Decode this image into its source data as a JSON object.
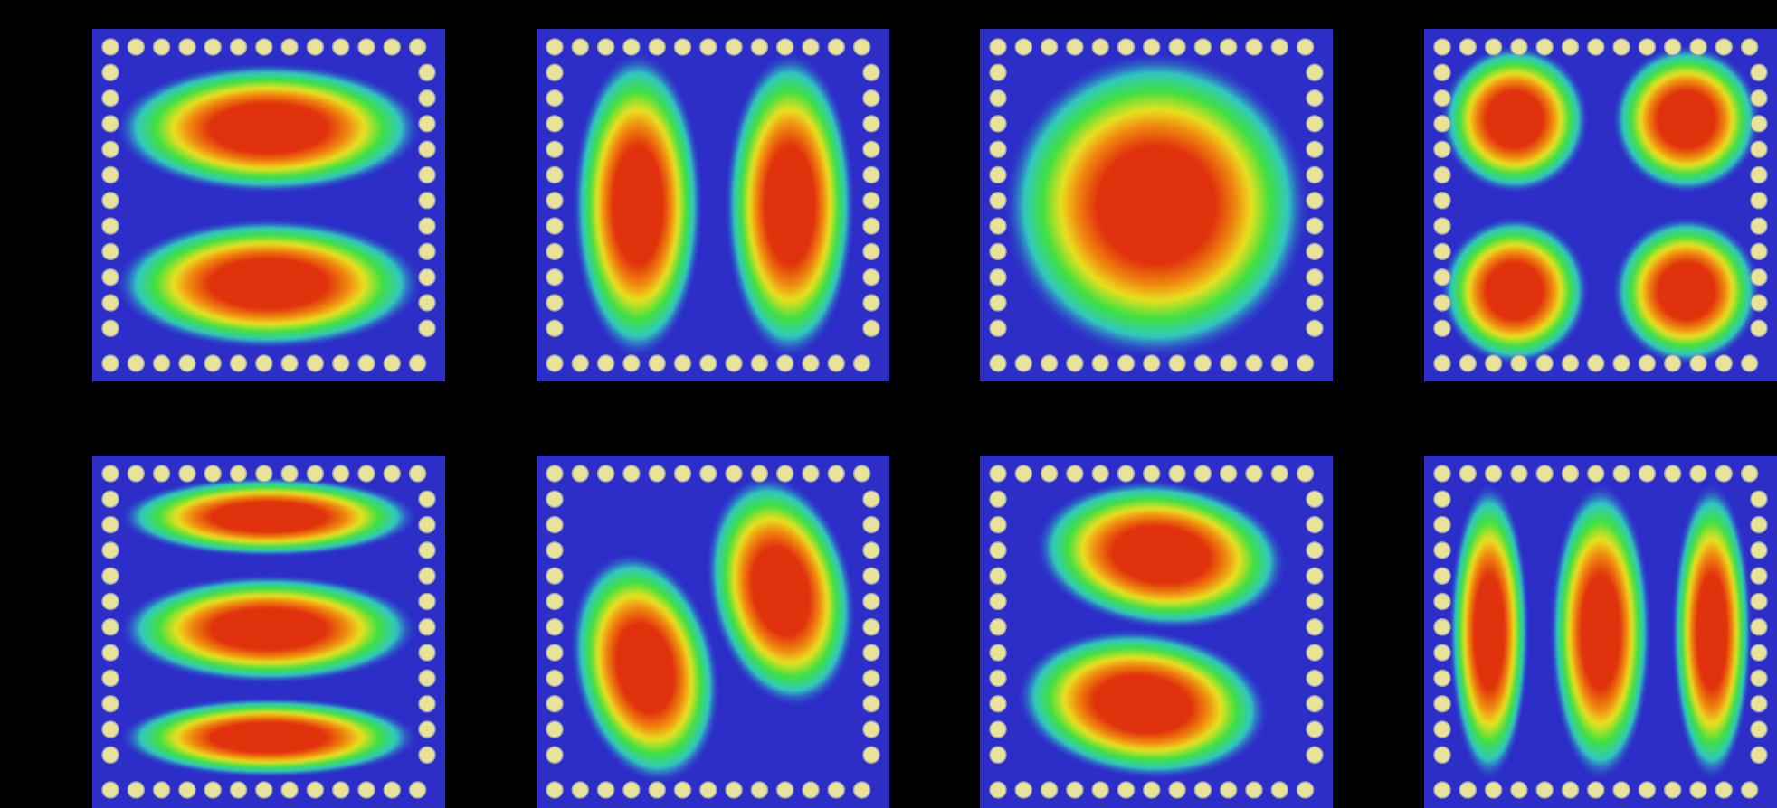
{
  "figure": {
    "background": "#000000",
    "palette": {
      "cavity": "#2d2dc8",
      "rod_fill": "#e9e39a",
      "rod_edge": "#9aa0b8",
      "field_low": "#2d2dc8",
      "field_mid": "#30e0a0",
      "field_high": "#e03010"
    },
    "panels": [
      {
        "mode": "two-horizontal-lobes"
      },
      {
        "mode": "two-vertical-lobes"
      },
      {
        "mode": "single-central-lobe"
      },
      {
        "mode": "four-corner-lobes"
      },
      {
        "mode": "three-horizontal-lobes"
      },
      {
        "mode": "two-diagonal-lobes-vertical"
      },
      {
        "mode": "two-diagonal-lobes-horizontal"
      },
      {
        "mode": "three-vertical-lobes"
      }
    ]
  }
}
